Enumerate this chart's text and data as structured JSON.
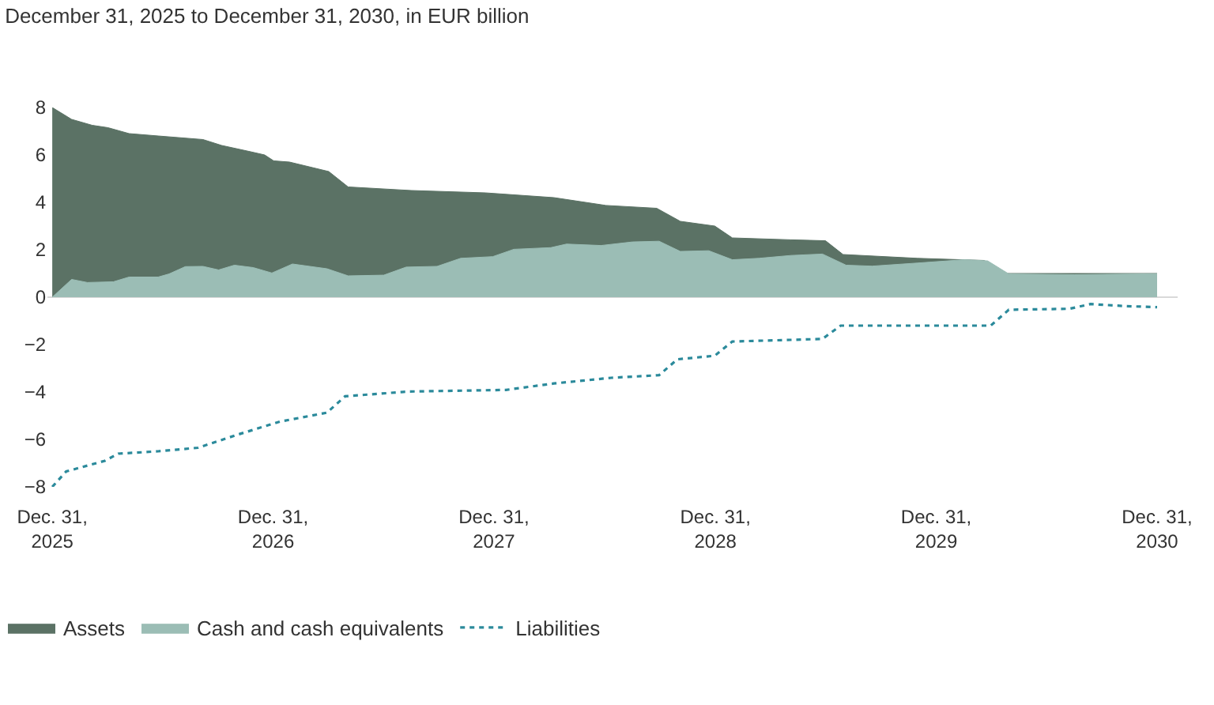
{
  "chart_data": {
    "type": "area",
    "title": "December 31, 2025 to December 31, 2030, in EUR billion",
    "series": [
      {
        "name": "Assets",
        "type": "area",
        "color": "#5b7265",
        "x": [
          "2025-12-31",
          "2026-02-01",
          "2026-03-07",
          "2026-04-02",
          "2026-05-07",
          "2026-06-24",
          "2026-09-06",
          "2026-10-07",
          "2026-11-21",
          "2026-12-17",
          "2027-01-01",
          "2027-01-27",
          "2027-04-02",
          "2027-05-04",
          "2027-08-16",
          "2027-12-17",
          "2028-04-08",
          "2028-07-03",
          "2028-09-25",
          "2028-11-03",
          "2028-12-30",
          "2029-01-28",
          "2029-05-05",
          "2029-07-01",
          "2029-07-30",
          "2029-11-30",
          "2030-03-20",
          "2030-04-26",
          "2030-12-31"
        ],
        "values": [
          8.0,
          7.5,
          7.25,
          7.15,
          6.9,
          6.8,
          6.65,
          6.4,
          6.15,
          6.0,
          5.75,
          5.7,
          5.3,
          4.65,
          4.5,
          4.4,
          4.2,
          3.87,
          3.75,
          3.2,
          3.0,
          2.5,
          2.42,
          2.38,
          1.8,
          1.64,
          1.55,
          1.0,
          1.0
        ]
      },
      {
        "name": "Cash and cash equivalents",
        "type": "area",
        "color": "#9bbdb5",
        "x": [
          "2025-12-31",
          "2026-02-01",
          "2026-02-27",
          "2026-04-11",
          "2026-05-07",
          "2026-06-24",
          "2026-07-12",
          "2026-08-08",
          "2026-09-06",
          "2026-10-02",
          "2026-10-28",
          "2026-11-28",
          "2026-12-29",
          "2027-02-01",
          "2027-03-30",
          "2027-05-04",
          "2027-07-02",
          "2027-08-08",
          "2027-09-28",
          "2027-11-06",
          "2027-12-29",
          "2028-02-02",
          "2028-04-03",
          "2028-04-29",
          "2028-06-25",
          "2028-08-16",
          "2028-09-29",
          "2028-11-03",
          "2028-12-20",
          "2029-01-28",
          "2029-03-13",
          "2029-05-05",
          "2029-06-26",
          "2029-08-04",
          "2029-09-16",
          "2029-11-30",
          "2030-02-15",
          "2030-03-26",
          "2030-04-30",
          "2030-08-17",
          "2030-12-31"
        ],
        "values": [
          0.0,
          0.75,
          0.62,
          0.65,
          0.85,
          0.85,
          0.98,
          1.29,
          1.3,
          1.15,
          1.35,
          1.25,
          1.02,
          1.4,
          1.2,
          0.9,
          0.93,
          1.27,
          1.3,
          1.64,
          1.71,
          2.02,
          2.09,
          2.24,
          2.18,
          2.33,
          2.36,
          1.93,
          1.96,
          1.58,
          1.64,
          1.76,
          1.82,
          1.35,
          1.31,
          1.44,
          1.58,
          1.53,
          0.98,
          0.95,
          0.99
        ]
      },
      {
        "name": "Liabilities",
        "type": "line",
        "line_style": "dotted",
        "color": "#2b8a9b",
        "x": [
          "2025-12-31",
          "2026-01-23",
          "2026-03-28",
          "2026-04-19",
          "2026-06-24",
          "2026-08-29",
          "2026-11-02",
          "2027-01-11",
          "2027-03-30",
          "2027-04-29",
          "2027-08-11",
          "2028-01-20",
          "2028-04-08",
          "2028-07-12",
          "2028-09-29",
          "2028-10-29",
          "2028-12-30",
          "2029-01-28",
          "2029-05-05",
          "2029-06-26",
          "2029-07-26",
          "2030-03-31",
          "2030-04-30",
          "2030-08-08",
          "2030-09-12",
          "2030-11-11",
          "2030-12-31"
        ],
        "values": [
          -8.0,
          -7.35,
          -6.9,
          -6.6,
          -6.5,
          -6.35,
          -5.8,
          -5.25,
          -4.87,
          -4.18,
          -3.98,
          -3.91,
          -3.64,
          -3.4,
          -3.29,
          -2.62,
          -2.47,
          -1.87,
          -1.8,
          -1.76,
          -1.2,
          -1.2,
          -0.53,
          -0.49,
          -0.29,
          -0.38,
          -0.42
        ]
      }
    ],
    "xlim": [
      "2025-12-23",
      "2031-02-03"
    ],
    "xticks": [
      {
        "value": "2025-12-31",
        "label": "Dec. 31,\n2025"
      },
      {
        "value": "2026-12-31",
        "label": "Dec. 31,\n2026"
      },
      {
        "value": "2027-12-31",
        "label": "Dec. 31,\n2027"
      },
      {
        "value": "2028-12-31",
        "label": "Dec. 31,\n2028"
      },
      {
        "value": "2029-12-31",
        "label": "Dec. 31,\n2029"
      },
      {
        "value": "2030-12-31",
        "label": "Dec. 31,\n2030"
      }
    ],
    "ylim": [
      -8,
      8
    ],
    "yticks": [
      -8,
      -6,
      -4,
      -2,
      0,
      2,
      4,
      6,
      8
    ],
    "ref_lines": [
      {
        "axis": "y",
        "value": 0,
        "color": "#d9d9d9"
      }
    ],
    "grid": false,
    "legend": "bottom left"
  }
}
